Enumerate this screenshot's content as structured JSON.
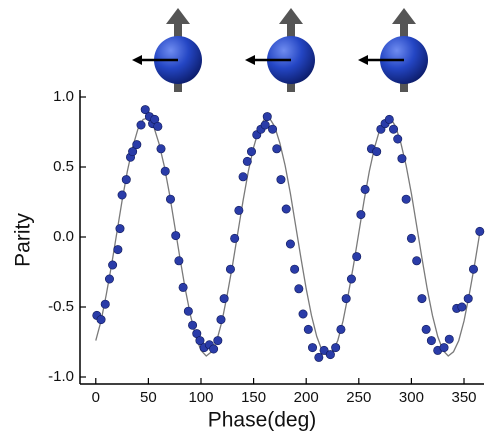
{
  "chart_data": {
    "type": "scatter",
    "xlabel": "Phase(deg)",
    "ylabel": "Parity",
    "xlim": [
      -15,
      369
    ],
    "ylim": [
      -1.05,
      1.05
    ],
    "xticks": [
      0,
      50,
      100,
      150,
      200,
      250,
      300,
      350
    ],
    "yticks": [
      {
        "value": 1,
        "label": "1.0"
      },
      0.5,
      {
        "value": 0,
        "label": "0.0"
      },
      -0.5,
      {
        "value": -1,
        "label": "-1.0"
      }
    ],
    "series": [
      {
        "style": "markers",
        "color": "#2a3ca8",
        "x": [
          1,
          5,
          9,
          13,
          16,
          21,
          23,
          25,
          29,
          33,
          35,
          39,
          43,
          47,
          51,
          54,
          56,
          59,
          62,
          66,
          71,
          76,
          79,
          83,
          88,
          92,
          96,
          99,
          103,
          108,
          112,
          116,
          119,
          122,
          128,
          132,
          136,
          140,
          144,
          148,
          153,
          157,
          161,
          163,
          168,
          172,
          176,
          181,
          185,
          189,
          193,
          197,
          202,
          206,
          212,
          217,
          223,
          228,
          233,
          238,
          243,
          248,
          252,
          256,
          262,
          267,
          271,
          275,
          279,
          283,
          287,
          291,
          295,
          300,
          305,
          310,
          314,
          319,
          325,
          331,
          336,
          343,
          348,
          354,
          359,
          365
        ],
        "values": [
          -0.56,
          -0.59,
          -0.48,
          -0.3,
          -0.2,
          -0.09,
          0.06,
          0.3,
          0.41,
          0.57,
          0.61,
          0.66,
          0.8,
          0.91,
          0.86,
          0.81,
          0.84,
          0.79,
          0.63,
          0.47,
          0.27,
          0.01,
          -0.17,
          -0.36,
          -0.53,
          -0.63,
          -0.69,
          -0.74,
          -0.79,
          -0.77,
          -0.8,
          -0.74,
          -0.59,
          -0.44,
          -0.23,
          -0.01,
          0.19,
          0.43,
          0.54,
          0.61,
          0.73,
          0.77,
          0.8,
          0.86,
          0.77,
          0.63,
          0.41,
          0.2,
          -0.05,
          -0.23,
          -0.37,
          -0.55,
          -0.66,
          -0.79,
          -0.86,
          -0.81,
          -0.84,
          -0.79,
          -0.66,
          -0.44,
          -0.3,
          -0.14,
          0.16,
          0.34,
          0.63,
          0.61,
          0.77,
          0.81,
          0.84,
          0.77,
          0.7,
          0.56,
          0.27,
          -0.01,
          -0.17,
          -0.44,
          -0.66,
          -0.74,
          -0.81,
          -0.79,
          -0.73,
          -0.51,
          -0.5,
          -0.44,
          -0.23,
          0.04
        ]
      },
      {
        "style": "line",
        "color": "#7a7a7a",
        "x": [
          0,
          5,
          10,
          15,
          20,
          25,
          30,
          35,
          40,
          45,
          50,
          55,
          60,
          65,
          70,
          75,
          80,
          85,
          90,
          95,
          100,
          105,
          110,
          115,
          120,
          125,
          130,
          135,
          140,
          145,
          150,
          155,
          160,
          165,
          170,
          175,
          180,
          185,
          190,
          195,
          200,
          205,
          210,
          215,
          220,
          225,
          230,
          235,
          240,
          245,
          250,
          255,
          260,
          265,
          270,
          275,
          280,
          285,
          290,
          295,
          300,
          305,
          310,
          315,
          320,
          325,
          330,
          335,
          340,
          345,
          350,
          355,
          360,
          365
        ],
        "values": [
          -0.74,
          -0.6,
          -0.41,
          -0.2,
          0.03,
          0.26,
          0.47,
          0.64,
          0.77,
          0.84,
          0.85,
          0.79,
          0.67,
          0.51,
          0.31,
          0.08,
          -0.15,
          -0.37,
          -0.56,
          -0.71,
          -0.81,
          -0.85,
          -0.82,
          -0.74,
          -0.6,
          -0.41,
          -0.2,
          0.03,
          0.26,
          0.47,
          0.64,
          0.77,
          0.84,
          0.85,
          0.79,
          0.67,
          0.51,
          0.31,
          0.08,
          -0.15,
          -0.37,
          -0.56,
          -0.71,
          -0.81,
          -0.85,
          -0.82,
          -0.74,
          -0.6,
          -0.41,
          -0.2,
          0.03,
          0.26,
          0.47,
          0.64,
          0.77,
          0.84,
          0.85,
          0.79,
          0.67,
          0.51,
          0.31,
          0.08,
          -0.15,
          -0.37,
          -0.56,
          -0.71,
          -0.81,
          -0.85,
          -0.82,
          -0.74,
          -0.6,
          -0.41,
          -0.2,
          0.03
        ]
      }
    ]
  }
}
